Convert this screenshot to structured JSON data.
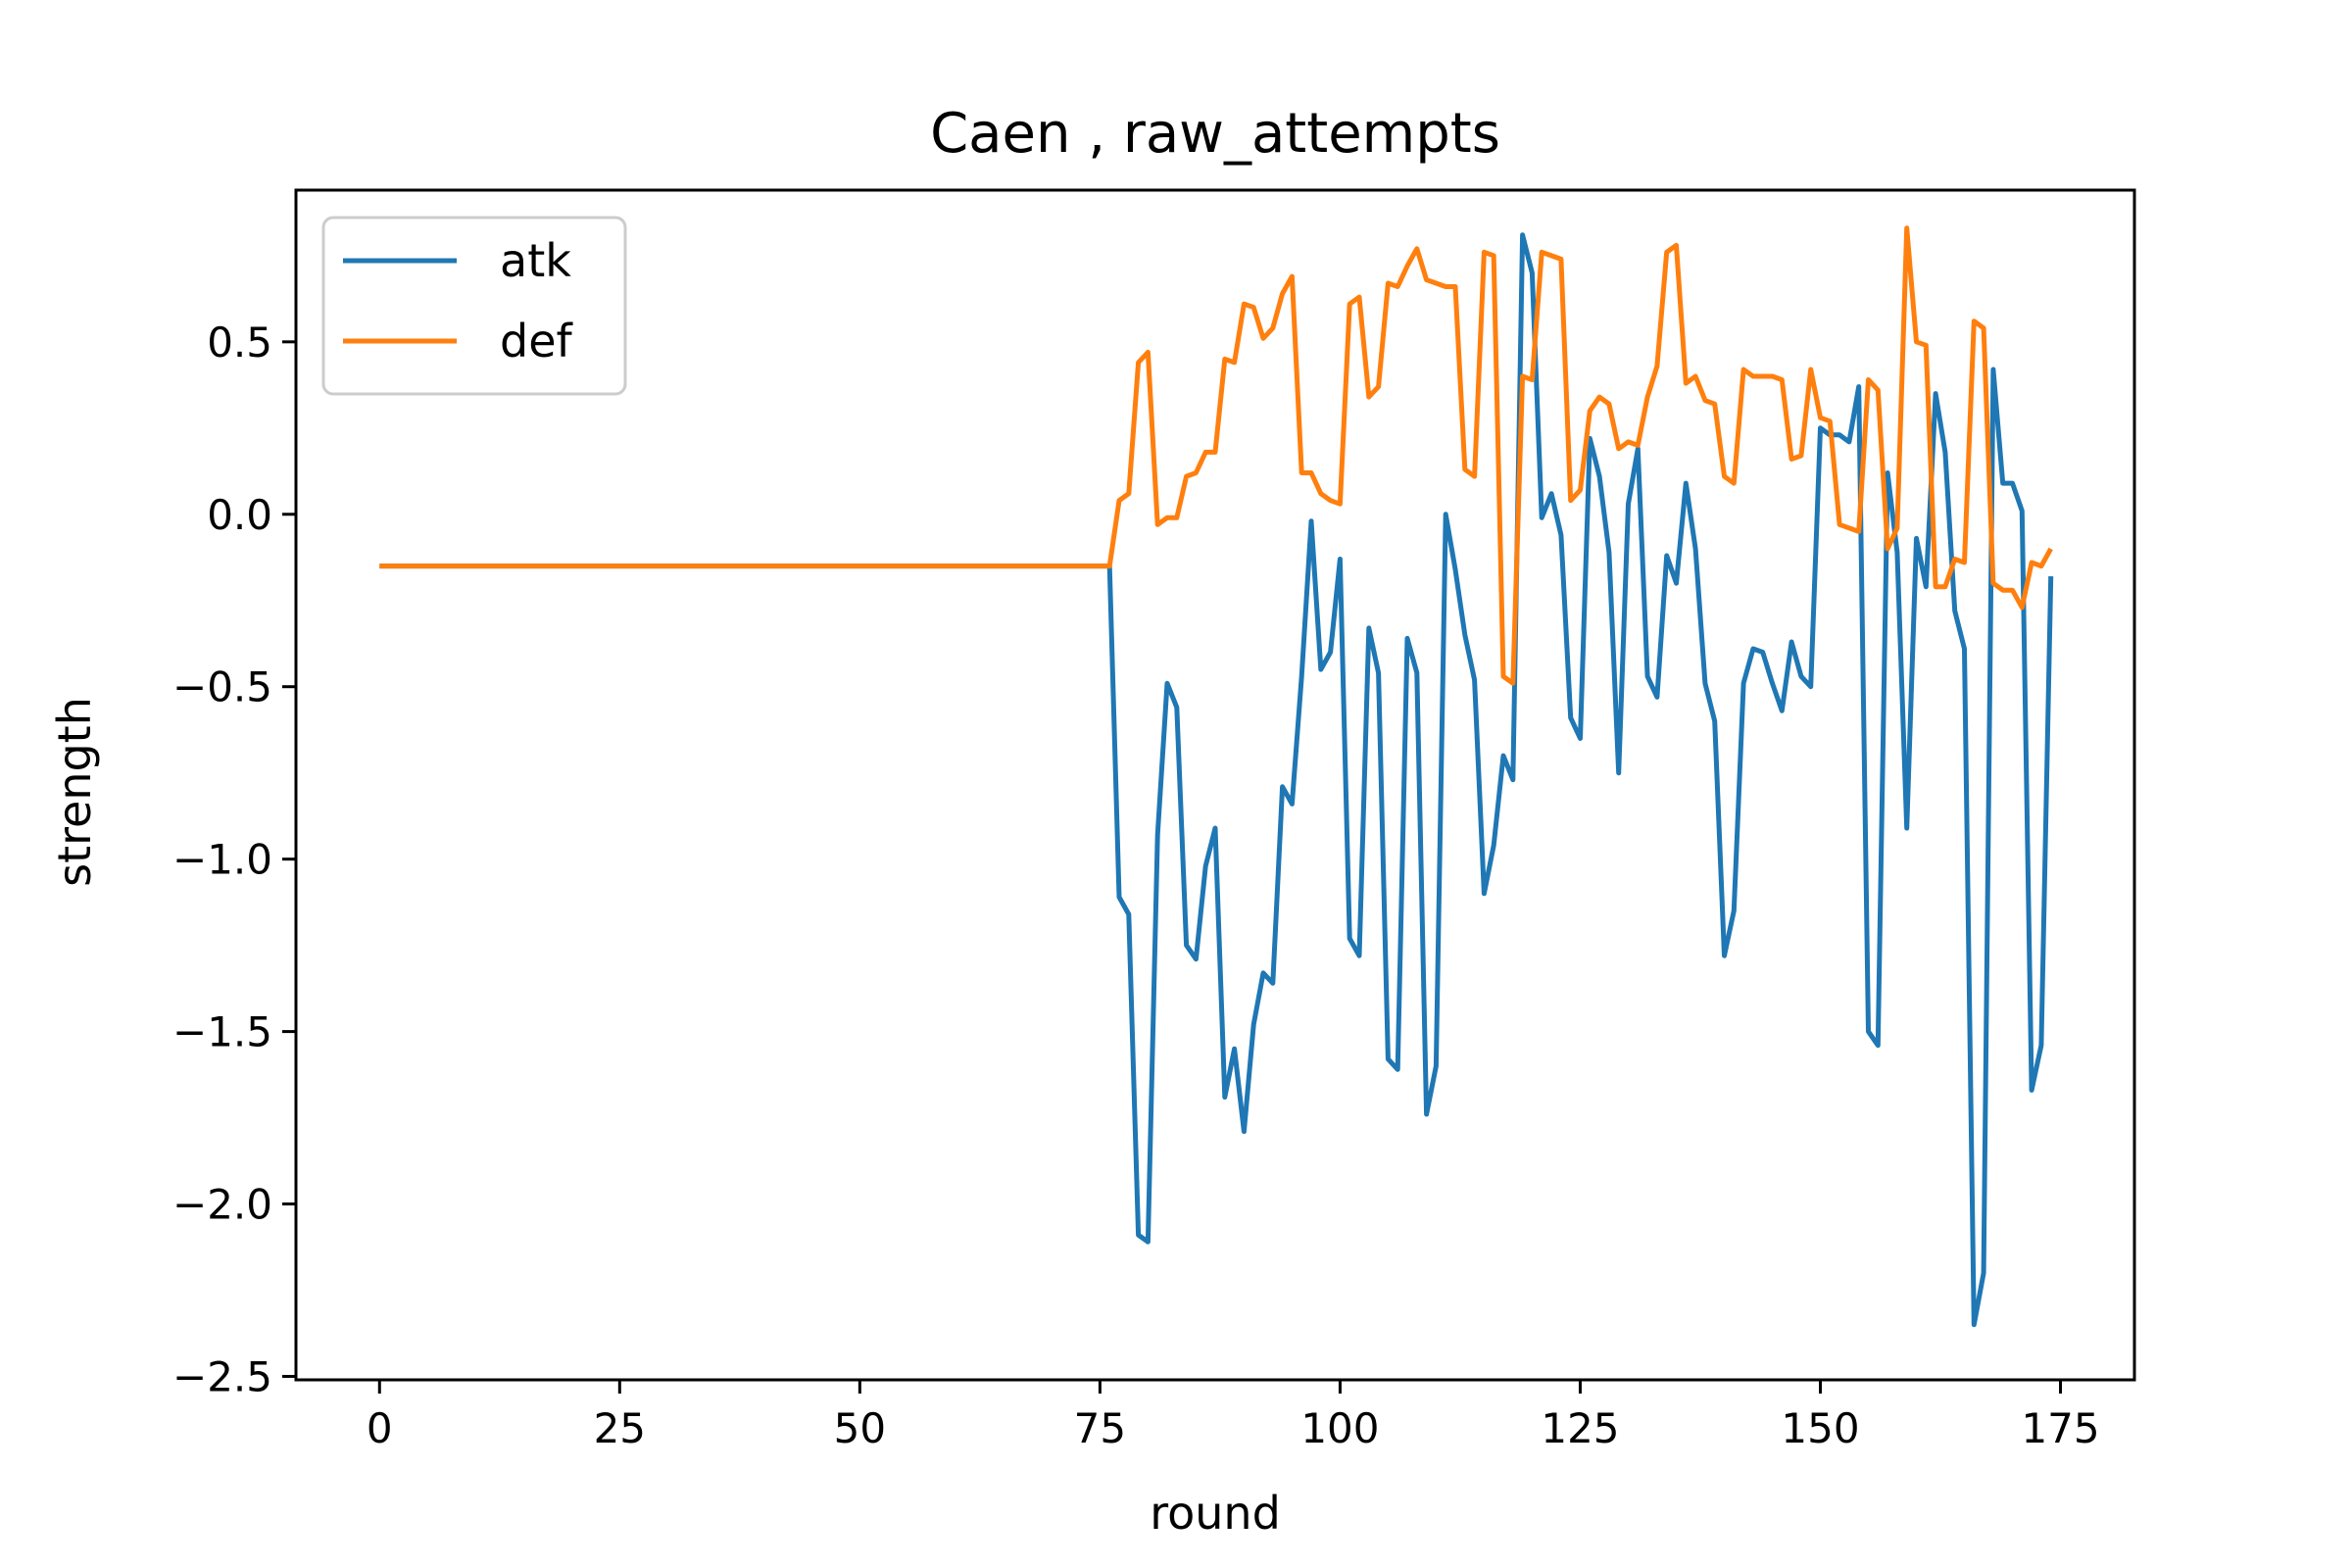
{
  "chart_data": {
    "type": "line",
    "title": "Caen , raw_attempts",
    "xlabel": "round",
    "ylabel": "strength",
    "xlim": [
      -8.7,
      182.7
    ],
    "ylim": [
      -2.51,
      0.94
    ],
    "xticks": [
      0,
      25,
      50,
      75,
      100,
      125,
      150,
      175
    ],
    "yticks": [
      -2.5,
      -2.0,
      -1.5,
      -1.0,
      -0.5,
      0.0,
      0.5
    ],
    "ytick_labels": [
      "−2.5",
      "−2.0",
      "−1.5",
      "−1.0",
      "−0.5",
      "0.0",
      "0.5"
    ],
    "grid": false,
    "legend_position": "top-left",
    "series": [
      {
        "name": "atk",
        "color": "#1f77b4",
        "segments": [
          {
            "x_start": 0,
            "x_end": 76,
            "value": -0.15
          }
        ],
        "points": [
          [
            76,
            -0.15
          ],
          [
            77,
            -1.11
          ],
          [
            78,
            -1.16
          ],
          [
            79,
            -2.09
          ],
          [
            80,
            -2.11
          ],
          [
            81,
            -0.93
          ],
          [
            82,
            -0.49
          ],
          [
            83,
            -0.56
          ],
          [
            84,
            -1.25
          ],
          [
            85,
            -1.29
          ],
          [
            86,
            -1.02
          ],
          [
            87,
            -0.91
          ],
          [
            88,
            -1.69
          ],
          [
            89,
            -1.55
          ],
          [
            90,
            -1.79
          ],
          [
            91,
            -1.48
          ],
          [
            92,
            -1.33
          ],
          [
            93,
            -1.36
          ],
          [
            94,
            -0.79
          ],
          [
            95,
            -0.84
          ],
          [
            96,
            -0.47
          ],
          [
            97,
            -0.02
          ],
          [
            98,
            -0.45
          ],
          [
            99,
            -0.4
          ],
          [
            100,
            -0.13
          ],
          [
            101,
            -1.23
          ],
          [
            102,
            -1.28
          ],
          [
            103,
            -0.33
          ],
          [
            104,
            -0.46
          ],
          [
            105,
            -1.58
          ],
          [
            106,
            -1.61
          ],
          [
            107,
            -0.36
          ],
          [
            108,
            -0.46
          ],
          [
            109,
            -1.74
          ],
          [
            110,
            -1.6
          ],
          [
            111,
            0.0
          ],
          [
            112,
            -0.16
          ],
          [
            113,
            -0.35
          ],
          [
            114,
            -0.48
          ],
          [
            115,
            -1.1
          ],
          [
            116,
            -0.96
          ],
          [
            117,
            -0.7
          ],
          [
            118,
            -0.77
          ],
          [
            119,
            0.81
          ],
          [
            120,
            0.7
          ],
          [
            121,
            -0.01
          ],
          [
            122,
            0.06
          ],
          [
            123,
            -0.06
          ],
          [
            124,
            -0.59
          ],
          [
            125,
            -0.65
          ],
          [
            126,
            0.22
          ],
          [
            127,
            0.11
          ],
          [
            128,
            -0.11
          ],
          [
            129,
            -0.75
          ],
          [
            130,
            0.03
          ],
          [
            131,
            0.19
          ],
          [
            132,
            -0.47
          ],
          [
            133,
            -0.53
          ],
          [
            134,
            -0.12
          ],
          [
            135,
            -0.2
          ],
          [
            136,
            0.09
          ],
          [
            137,
            -0.1
          ],
          [
            138,
            -0.49
          ],
          [
            139,
            -0.6
          ],
          [
            140,
            -1.28
          ],
          [
            141,
            -1.15
          ],
          [
            142,
            -0.49
          ],
          [
            143,
            -0.39
          ],
          [
            144,
            -0.4
          ],
          [
            145,
            -0.49
          ],
          [
            146,
            -0.57
          ],
          [
            147,
            -0.37
          ],
          [
            148,
            -0.47
          ],
          [
            149,
            -0.5
          ],
          [
            150,
            0.25
          ],
          [
            151,
            0.23
          ],
          [
            152,
            0.23
          ],
          [
            153,
            0.21
          ],
          [
            154,
            0.37
          ],
          [
            155,
            -1.5
          ],
          [
            156,
            -1.54
          ],
          [
            157,
            0.12
          ],
          [
            158,
            -0.11
          ],
          [
            159,
            -0.91
          ],
          [
            160,
            -0.07
          ],
          [
            161,
            -0.21
          ],
          [
            162,
            0.35
          ],
          [
            163,
            0.18
          ],
          [
            164,
            -0.28
          ],
          [
            165,
            -0.39
          ],
          [
            166,
            -2.35
          ],
          [
            167,
            -2.2
          ],
          [
            168,
            0.42
          ],
          [
            169,
            0.09
          ],
          [
            170,
            0.09
          ],
          [
            171,
            0.01
          ],
          [
            172,
            -1.67
          ],
          [
            173,
            -1.54
          ],
          [
            174,
            -0.18
          ]
        ]
      },
      {
        "name": "def",
        "color": "#ff7f0e",
        "segments": [
          {
            "x_start": 0,
            "x_end": 76,
            "value": -0.15
          }
        ],
        "points": [
          [
            76,
            -0.15
          ],
          [
            77,
            0.04
          ],
          [
            78,
            0.06
          ],
          [
            79,
            0.44
          ],
          [
            80,
            0.47
          ],
          [
            81,
            -0.03
          ],
          [
            82,
            -0.01
          ],
          [
            83,
            -0.01
          ],
          [
            84,
            0.11
          ],
          [
            85,
            0.12
          ],
          [
            86,
            0.18
          ],
          [
            87,
            0.18
          ],
          [
            88,
            0.45
          ],
          [
            89,
            0.44
          ],
          [
            90,
            0.61
          ],
          [
            91,
            0.6
          ],
          [
            92,
            0.51
          ],
          [
            93,
            0.54
          ],
          [
            94,
            0.64
          ],
          [
            95,
            0.69
          ],
          [
            96,
            0.12
          ],
          [
            97,
            0.12
          ],
          [
            98,
            0.06
          ],
          [
            99,
            0.04
          ],
          [
            100,
            0.03
          ],
          [
            101,
            0.61
          ],
          [
            102,
            0.63
          ],
          [
            103,
            0.34
          ],
          [
            104,
            0.37
          ],
          [
            105,
            0.67
          ],
          [
            106,
            0.66
          ],
          [
            107,
            0.72
          ],
          [
            108,
            0.77
          ],
          [
            109,
            0.68
          ],
          [
            110,
            0.67
          ],
          [
            111,
            0.66
          ],
          [
            112,
            0.66
          ],
          [
            113,
            0.13
          ],
          [
            114,
            0.11
          ],
          [
            115,
            0.76
          ],
          [
            116,
            0.75
          ],
          [
            117,
            -0.47
          ],
          [
            118,
            -0.49
          ],
          [
            119,
            0.4
          ],
          [
            120,
            0.39
          ],
          [
            121,
            0.76
          ],
          [
            122,
            0.75
          ],
          [
            123,
            0.74
          ],
          [
            124,
            0.04
          ],
          [
            125,
            0.07
          ],
          [
            126,
            0.3
          ],
          [
            127,
            0.34
          ],
          [
            128,
            0.32
          ],
          [
            129,
            0.19
          ],
          [
            130,
            0.21
          ],
          [
            131,
            0.2
          ],
          [
            132,
            0.34
          ],
          [
            133,
            0.43
          ],
          [
            134,
            0.76
          ],
          [
            135,
            0.78
          ],
          [
            136,
            0.38
          ],
          [
            137,
            0.4
          ],
          [
            138,
            0.33
          ],
          [
            139,
            0.32
          ],
          [
            140,
            0.11
          ],
          [
            141,
            0.09
          ],
          [
            142,
            0.42
          ],
          [
            143,
            0.4
          ],
          [
            144,
            0.4
          ],
          [
            145,
            0.4
          ],
          [
            146,
            0.39
          ],
          [
            147,
            0.16
          ],
          [
            148,
            0.17
          ],
          [
            149,
            0.42
          ],
          [
            150,
            0.28
          ],
          [
            151,
            0.27
          ],
          [
            152,
            -0.03
          ],
          [
            153,
            -0.04
          ],
          [
            154,
            -0.05
          ],
          [
            155,
            0.39
          ],
          [
            156,
            0.36
          ],
          [
            157,
            -0.1
          ],
          [
            158,
            -0.04
          ],
          [
            159,
            0.83
          ],
          [
            160,
            0.5
          ],
          [
            161,
            0.49
          ],
          [
            162,
            -0.21
          ],
          [
            163,
            -0.21
          ],
          [
            164,
            -0.13
          ],
          [
            165,
            -0.14
          ],
          [
            166,
            0.56
          ],
          [
            167,
            0.54
          ],
          [
            168,
            -0.2
          ],
          [
            169,
            -0.22
          ],
          [
            170,
            -0.22
          ],
          [
            171,
            -0.27
          ],
          [
            172,
            -0.14
          ],
          [
            173,
            -0.15
          ],
          [
            174,
            -0.1
          ]
        ]
      }
    ]
  }
}
